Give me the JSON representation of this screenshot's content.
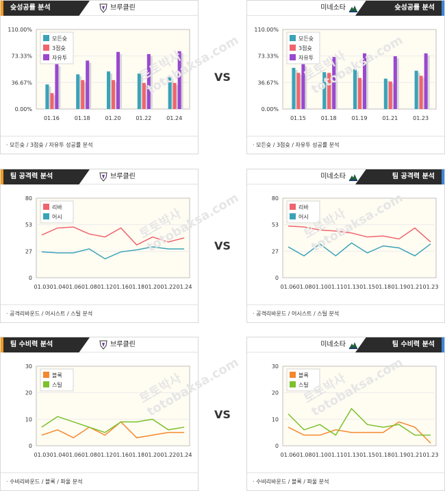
{
  "vs_label": "VS",
  "sections": [
    {
      "id": "shot",
      "left": {
        "tab": "슛성공률 분석",
        "team": "브루클린",
        "footer": "· 모든슛 / 3점슛 / 자유투 성공률 분석"
      },
      "right": {
        "tab": "슛성공률 분석",
        "team": "미네소타",
        "footer": "· 모든슛 / 3점슛 / 자유투 성공률 분석"
      }
    },
    {
      "id": "attack",
      "left": {
        "tab": "팀 공격력 분석",
        "team": "브루클린",
        "footer": "· 공격리바운드 / 어시스트 / 스틸 분석"
      },
      "right": {
        "tab": "팀 공격력 분석",
        "team": "미네소타",
        "footer": "· 공격리바운드 / 어시스트 / 스틸 분석"
      }
    },
    {
      "id": "defense",
      "left": {
        "tab": "팀 수비력 분석",
        "team": "브루클린",
        "footer": "· 수비리바운드 / 블록 / 파울 분석"
      },
      "right": {
        "tab": "팀 수비력 분석",
        "team": "미네소타",
        "footer": "· 수비리바운드 / 블록 / 파울 분석"
      }
    }
  ],
  "watermark": {
    "line1": "토토박사",
    "line2": "totobaksa.com"
  },
  "colors": {
    "teal": "#3aa3b8",
    "red": "#f0646e",
    "purple": "#9a48d0",
    "orange": "#f5872c",
    "green": "#7cc12a",
    "plot_bg": "#fffcf2"
  },
  "chart_data": [
    {
      "type": "bar",
      "panel": "shot-left",
      "categories": [
        "01.16",
        "01.18",
        "01.20",
        "01.22",
        "01.24"
      ],
      "yticks": [
        "110.00%",
        "73.33%",
        "36.67%",
        "0.00%"
      ],
      "ylim": [
        0,
        110
      ],
      "series": [
        {
          "name": "모든슛",
          "color": "#3aa3b8",
          "values": [
            34,
            48,
            52,
            49,
            44
          ]
        },
        {
          "name": "3점슛",
          "color": "#f0646e",
          "values": [
            22,
            40,
            40,
            36,
            36
          ]
        },
        {
          "name": "자유투",
          "color": "#9a48d0",
          "values": [
            62,
            67,
            79,
            76,
            80
          ]
        }
      ],
      "legend": "top-left"
    },
    {
      "type": "bar",
      "panel": "shot-right",
      "categories": [
        "01.15",
        "01.18",
        "01.19",
        "01.21",
        "01.23"
      ],
      "yticks": [
        "110.00%",
        "73.33%",
        "36.67%",
        "0.00%"
      ],
      "ylim": [
        0,
        110
      ],
      "series": [
        {
          "name": "모든슛",
          "color": "#3aa3b8",
          "values": [
            57,
            51,
            55,
            42,
            53
          ]
        },
        {
          "name": "3점슛",
          "color": "#f0646e",
          "values": [
            50,
            50,
            43,
            38,
            46
          ]
        },
        {
          "name": "자유투",
          "color": "#9a48d0",
          "values": [
            62,
            72,
            77,
            73,
            77
          ]
        }
      ],
      "legend": "top-left"
    },
    {
      "type": "line",
      "panel": "attack-left",
      "x": [
        "01.03",
        "01.04",
        "01.06",
        "01.08",
        "01.12",
        "01.16",
        "01.18",
        "01.20",
        "01.22",
        "01.24"
      ],
      "yticks": [
        "80",
        "53",
        "27",
        "0"
      ],
      "ylim": [
        0,
        80
      ],
      "series": [
        {
          "name": "리바",
          "color": "#f0646e",
          "values": [
            43,
            50,
            51,
            44,
            41,
            50,
            33,
            41,
            36,
            40
          ]
        },
        {
          "name": "어시",
          "color": "#3aa3b8",
          "values": [
            26,
            25,
            25,
            29,
            19,
            26,
            28,
            31,
            29,
            29
          ]
        }
      ],
      "legend": "top-left"
    },
    {
      "type": "line",
      "panel": "attack-right",
      "x": [
        "01.06",
        "01.08",
        "01.10",
        "01.11",
        "01.13",
        "01.15",
        "01.18",
        "01.19",
        "01.21",
        "01.23"
      ],
      "yticks": [
        "80",
        "53",
        "27",
        "0"
      ],
      "ylim": [
        0,
        80
      ],
      "series": [
        {
          "name": "리바",
          "color": "#f0646e",
          "values": [
            52,
            51,
            48,
            47,
            45,
            41,
            42,
            39,
            50,
            36
          ]
        },
        {
          "name": "어시",
          "color": "#3aa3b8",
          "values": [
            31,
            22,
            34,
            22,
            35,
            25,
            32,
            30,
            22,
            34
          ]
        }
      ],
      "legend": "top-left"
    },
    {
      "type": "line",
      "panel": "defense-left",
      "x": [
        "01.03",
        "01.04",
        "01.06",
        "01.08",
        "01.12",
        "01.16",
        "01.18",
        "01.20",
        "01.22",
        "01.24"
      ],
      "yticks": [
        "30",
        "20",
        "10",
        "0"
      ],
      "ylim": [
        0,
        30
      ],
      "series": [
        {
          "name": "블록",
          "color": "#f5872c",
          "values": [
            4,
            6,
            3,
            7,
            4,
            9,
            3,
            4,
            5,
            5
          ]
        },
        {
          "name": "스틸",
          "color": "#7cc12a",
          "values": [
            7,
            11,
            9,
            7,
            5,
            9,
            9,
            10,
            6,
            7
          ]
        }
      ],
      "legend": "top-left"
    },
    {
      "type": "line",
      "panel": "defense-right",
      "x": [
        "01.06",
        "01.08",
        "01.10",
        "01.11",
        "01.13",
        "01.15",
        "01.18",
        "01.19",
        "01.21",
        "01.23"
      ],
      "yticks": [
        "30",
        "20",
        "10",
        "0"
      ],
      "ylim": [
        0,
        30
      ],
      "series": [
        {
          "name": "블록",
          "color": "#f5872c",
          "values": [
            7,
            4,
            4,
            6,
            5,
            5,
            5,
            9,
            7,
            1
          ]
        },
        {
          "name": "스틸",
          "color": "#7cc12a",
          "values": [
            12,
            6,
            8,
            4,
            14,
            8,
            7,
            8,
            4,
            4
          ]
        }
      ],
      "legend": "top-left"
    }
  ]
}
